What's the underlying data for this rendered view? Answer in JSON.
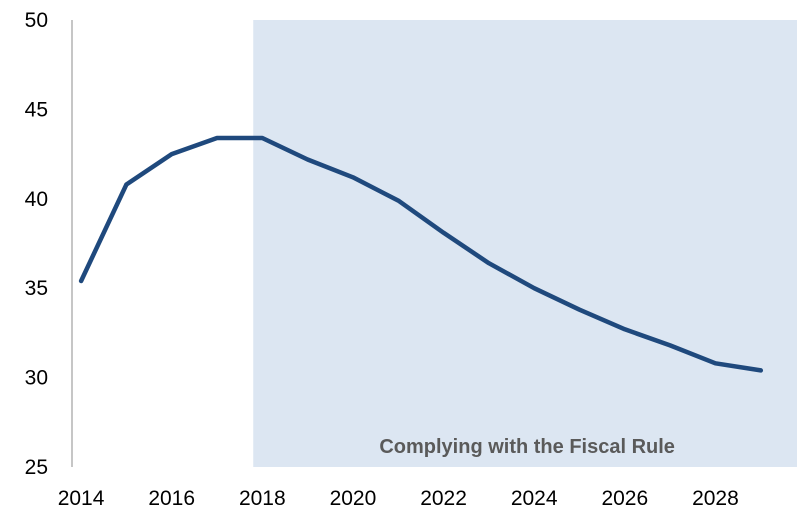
{
  "chart_data": {
    "type": "line",
    "title": "",
    "xlabel": "",
    "ylabel": "",
    "xlim": [
      2013.8,
      2029.8
    ],
    "ylim": [
      25,
      50
    ],
    "x_ticks": [
      2014,
      2016,
      2018,
      2020,
      2022,
      2024,
      2026,
      2028
    ],
    "y_ticks": [
      25,
      30,
      35,
      40,
      45,
      50
    ],
    "grid": false,
    "legend": "none",
    "series": [
      {
        "color": "#1f497d",
        "x": [
          2014,
          2015,
          2016,
          2017,
          2018,
          2019,
          2020,
          2021,
          2022,
          2023,
          2024,
          2025,
          2026,
          2027,
          2028,
          2029
        ],
        "values": [
          35.4,
          40.8,
          42.5,
          43.4,
          43.4,
          42.2,
          41.2,
          39.9,
          38.1,
          36.4,
          35.0,
          33.8,
          32.7,
          31.8,
          30.8,
          30.4
        ]
      }
    ],
    "shaded_region": {
      "x_start": 2017.8,
      "x_end": 2029.8,
      "color": "#dce6f2",
      "label": "Complying with the Fiscal Rule"
    }
  }
}
